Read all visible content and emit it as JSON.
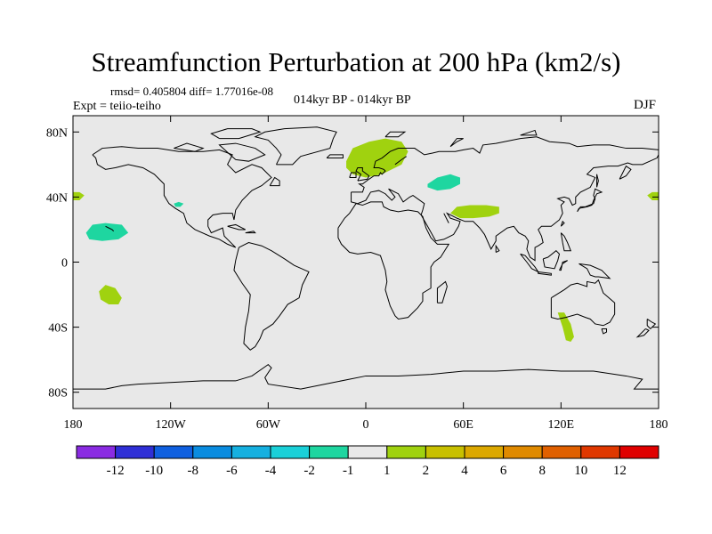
{
  "title": "Streamfunction Perturbation at 200 hPa (km2/s)",
  "stats": "rmsd= 0.405804 diff= 1.77016e-08",
  "expt": "Expt = teiio-teiho",
  "subtitle": "014kyr BP - 014kyr BP",
  "season": "DJF",
  "map": {
    "projection": "cylindrical-equidistant",
    "lon_range": [
      -180,
      180
    ],
    "lat_range": [
      -90,
      90
    ],
    "background_color": "#e8e8e8",
    "lat_ticks": [
      {
        "value": 80,
        "label": "80N"
      },
      {
        "value": 40,
        "label": "40N"
      },
      {
        "value": 0,
        "label": "0"
      },
      {
        "value": -40,
        "label": "40S"
      },
      {
        "value": -80,
        "label": "80S"
      }
    ],
    "lon_ticks": [
      {
        "value": -180,
        "label": "180"
      },
      {
        "value": -120,
        "label": "120W"
      },
      {
        "value": -60,
        "label": "60W"
      },
      {
        "value": 0,
        "label": "0"
      },
      {
        "value": 60,
        "label": "60E"
      },
      {
        "value": 120,
        "label": "120E"
      },
      {
        "value": 180,
        "label": "180"
      }
    ],
    "anomaly_regions": [
      {
        "name": "north-atlantic-scandinavia",
        "color": "#a0d20f",
        "polygon": [
          [
            -12,
            62
          ],
          [
            -8,
            70
          ],
          [
            2,
            74
          ],
          [
            12,
            76
          ],
          [
            22,
            74
          ],
          [
            26,
            68
          ],
          [
            22,
            60
          ],
          [
            10,
            54
          ],
          [
            0,
            52
          ],
          [
            -8,
            54
          ],
          [
            -12,
            58
          ]
        ]
      },
      {
        "name": "caspian",
        "color": "#1ed6a0",
        "polygon": [
          [
            38,
            48
          ],
          [
            44,
            52
          ],
          [
            52,
            54
          ],
          [
            58,
            52
          ],
          [
            58,
            48
          ],
          [
            52,
            45
          ],
          [
            44,
            44
          ],
          [
            38,
            46
          ]
        ]
      },
      {
        "name": "himalaya-persia",
        "color": "#a0d20f",
        "polygon": [
          [
            52,
            30
          ],
          [
            56,
            34
          ],
          [
            64,
            35
          ],
          [
            74,
            35
          ],
          [
            82,
            34
          ],
          [
            82,
            30
          ],
          [
            76,
            28
          ],
          [
            66,
            27
          ],
          [
            58,
            27
          ]
        ]
      },
      {
        "name": "north-pacific-west-edge",
        "color": "#a0d20f",
        "polygon": [
          [
            -180,
            43
          ],
          [
            -176,
            43
          ],
          [
            -173,
            41
          ],
          [
            -176,
            38
          ],
          [
            -180,
            38
          ]
        ]
      },
      {
        "name": "north-pacific-east-edge",
        "color": "#a0d20f",
        "polygon": [
          [
            180,
            43
          ],
          [
            176,
            43
          ],
          [
            173,
            41
          ],
          [
            176,
            38
          ],
          [
            180,
            38
          ]
        ]
      },
      {
        "name": "hawaii",
        "color": "#1ed6a0",
        "polygon": [
          [
            -172,
            18
          ],
          [
            -168,
            23
          ],
          [
            -160,
            24
          ],
          [
            -150,
            23
          ],
          [
            -146,
            18
          ],
          [
            -152,
            14
          ],
          [
            -162,
            13
          ],
          [
            -170,
            14
          ]
        ]
      },
      {
        "name": "california-small",
        "color": "#1ed6a0",
        "polygon": [
          [
            -118,
            36
          ],
          [
            -115,
            37
          ],
          [
            -112,
            36
          ],
          [
            -114,
            34
          ],
          [
            -117,
            34
          ]
        ]
      },
      {
        "name": "south-pacific",
        "color": "#a0d20f",
        "polygon": [
          [
            -164,
            -18
          ],
          [
            -160,
            -14
          ],
          [
            -154,
            -16
          ],
          [
            -150,
            -22
          ],
          [
            -152,
            -26
          ],
          [
            -158,
            -26
          ],
          [
            -163,
            -23
          ]
        ]
      },
      {
        "name": "southeast-australia",
        "color": "#a0d20f",
        "polygon": [
          [
            118,
            -31
          ],
          [
            122,
            -31
          ],
          [
            126,
            -38
          ],
          [
            128,
            -46
          ],
          [
            126,
            -49
          ],
          [
            123,
            -48
          ],
          [
            121,
            -40
          ]
        ]
      }
    ]
  },
  "colorbar": {
    "colors": [
      "#8a2be2",
      "#2f2fd6",
      "#1060e0",
      "#0a8ce0",
      "#15b0e0",
      "#1ad0d8",
      "#1ed6a0",
      "#e8e8e8",
      "#a0d20f",
      "#c8c000",
      "#dca800",
      "#e08a00",
      "#e06000",
      "#e03800",
      "#e00000"
    ],
    "labels": [
      "-12",
      "-10",
      "-8",
      "-6",
      "-4",
      "-2",
      "-1",
      "1",
      "2",
      "4",
      "6",
      "8",
      "10",
      "12"
    ]
  }
}
